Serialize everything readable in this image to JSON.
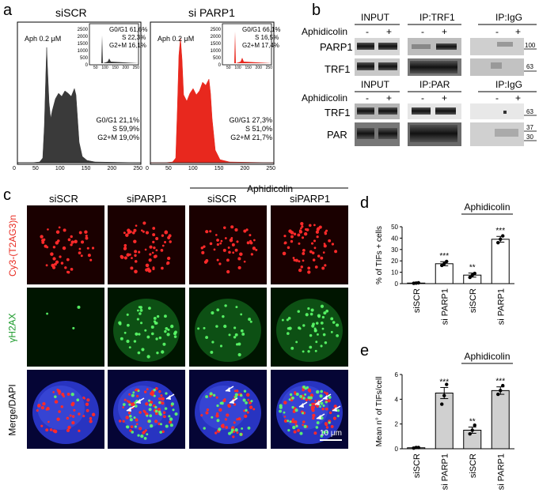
{
  "panel_labels": {
    "a": "a",
    "b": "b",
    "c": "c",
    "d": "d",
    "e": "e"
  },
  "panel_a": {
    "histograms": [
      {
        "title": "siSCR",
        "aph": "Aph 0.2 μM",
        "color": "#3a3a3a",
        "inset": [
          "G0/G1 61,6%",
          "S 22,3%",
          "G2+M 16,1%"
        ],
        "inset_yticks": [
          "2500",
          "2000",
          "1500",
          "1000",
          "500",
          "0"
        ],
        "inset_xticks": [
          "50",
          "100",
          "150",
          "200",
          "250"
        ],
        "stats": [
          "G0/G1 21,1%",
          "S 59,9%",
          "G2+M 19,0%"
        ]
      },
      {
        "title": "si PARP1",
        "aph": "Aph 0.2 μM",
        "color": "#e8281e",
        "inset": [
          "G0/G1 66,1%",
          "S 16,5%",
          "G2+M 17,4%"
        ],
        "inset_yticks": [
          "2500",
          "2000",
          "1500",
          "1000",
          "500",
          "0"
        ],
        "inset_xticks": [
          "50",
          "100",
          "150",
          "200",
          "250"
        ],
        "stats": [
          "G0/G1 27,3%",
          "S 51,0%",
          "G2+M 21,7%"
        ]
      }
    ],
    "xticks": [
      "0",
      "50",
      "100",
      "150",
      "200",
      "250"
    ]
  },
  "panel_b": {
    "top": {
      "headers": [
        "INPUT",
        "IP:TRF1",
        "IP:IgG"
      ],
      "treatment": "Aphidicolin",
      "signs": [
        "-",
        "+",
        "-",
        "+",
        "-",
        "+"
      ],
      "rows": [
        "PARP1",
        "TRF1"
      ],
      "markers": [
        "100",
        "63"
      ]
    },
    "bottom": {
      "headers": [
        "INPUT",
        "IP:PAR",
        "IP:IgG"
      ],
      "treatment": "Aphidicolin",
      "signs": [
        "-",
        "+",
        "-",
        "+",
        "-",
        "+"
      ],
      "rows": [
        "TRF1",
        "PAR"
      ],
      "markers": [
        "63",
        "37",
        "30"
      ]
    }
  },
  "panel_c": {
    "aph_label": "Aphidicolin",
    "columns": [
      "siSCR",
      "siPARP1",
      "siSCR",
      "siPARP1"
    ],
    "rows": [
      "Cy3-(T2AG3)n",
      "γH2AX",
      "Merge/DAPI"
    ],
    "scale_bar": "10 μm"
  },
  "panel_d": {
    "chart_data": {
      "type": "bar",
      "ylabel": "% of TIFs + cells",
      "categories": [
        "siSCR",
        "si PARP1",
        "siSCR",
        "si PARP1"
      ],
      "values": [
        0.5,
        17.5,
        7.5,
        39
      ],
      "errors": [
        0.3,
        1.8,
        1.8,
        2.5
      ],
      "significance": [
        "",
        "***",
        "**",
        "***"
      ],
      "points": [
        [
          0.3,
          0.5,
          0.7
        ],
        [
          16,
          17.5,
          19.5
        ],
        [
          5.5,
          7.5,
          9
        ],
        [
          36,
          39,
          42
        ]
      ],
      "ylim": [
        0,
        50
      ],
      "yticks": [
        "0",
        "10",
        "20",
        "30",
        "40",
        "50"
      ],
      "group_label": "Aphidicolin"
    }
  },
  "panel_e": {
    "chart_data": {
      "type": "bar",
      "ylabel": "Mean n° of TIFs/cell",
      "categories": [
        "siSCR",
        "si PARP1",
        "siSCR",
        "si PARP1"
      ],
      "values": [
        0.08,
        4.5,
        1.5,
        4.7
      ],
      "errors": [
        0.05,
        0.45,
        0.25,
        0.3
      ],
      "significance": [
        "",
        "***",
        "**",
        "***"
      ],
      "points": [
        [
          0.05,
          0.1,
          0.1
        ],
        [
          3.6,
          4.3,
          5.2
        ],
        [
          1.2,
          1.5,
          1.9
        ],
        [
          4.4,
          4.7,
          5.1
        ]
      ],
      "ylim": [
        0,
        6
      ],
      "yticks": [
        "0",
        "2",
        "4",
        "6"
      ],
      "group_label": "Aphidicolin"
    }
  }
}
